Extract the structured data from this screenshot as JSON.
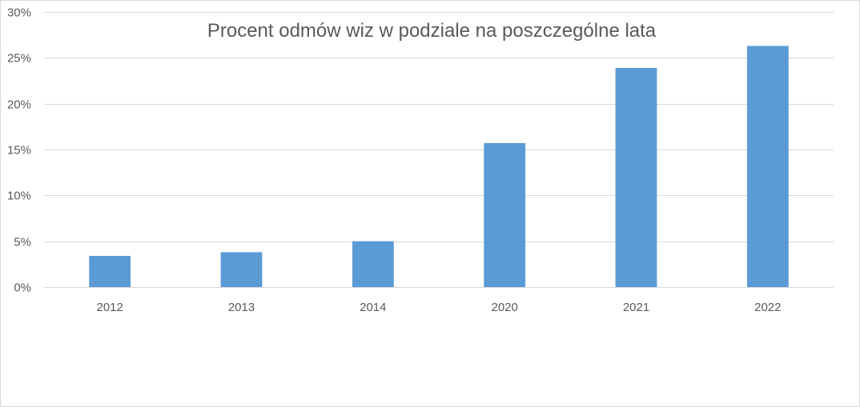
{
  "chart_data": {
    "type": "bar",
    "title": "Procent odmów wiz w podziale na poszczególne lata",
    "xlabel": "",
    "ylabel": "",
    "categories": [
      "2012",
      "2013",
      "2014",
      "2020",
      "2021",
      "2022"
    ],
    "values": [
      3.4,
      3.8,
      5.0,
      15.7,
      23.9,
      26.3
    ],
    "unit": "%",
    "ylim": [
      0,
      30
    ],
    "yticks": [
      0,
      5,
      10,
      15,
      20,
      25,
      30
    ],
    "ytick_labels": [
      "0%",
      "5%",
      "10%",
      "15%",
      "20%",
      "25%",
      "30%"
    ],
    "grid": true,
    "legend": "none",
    "bar_color": "#5b9bd5",
    "grid_color": "#d9d9d9"
  }
}
